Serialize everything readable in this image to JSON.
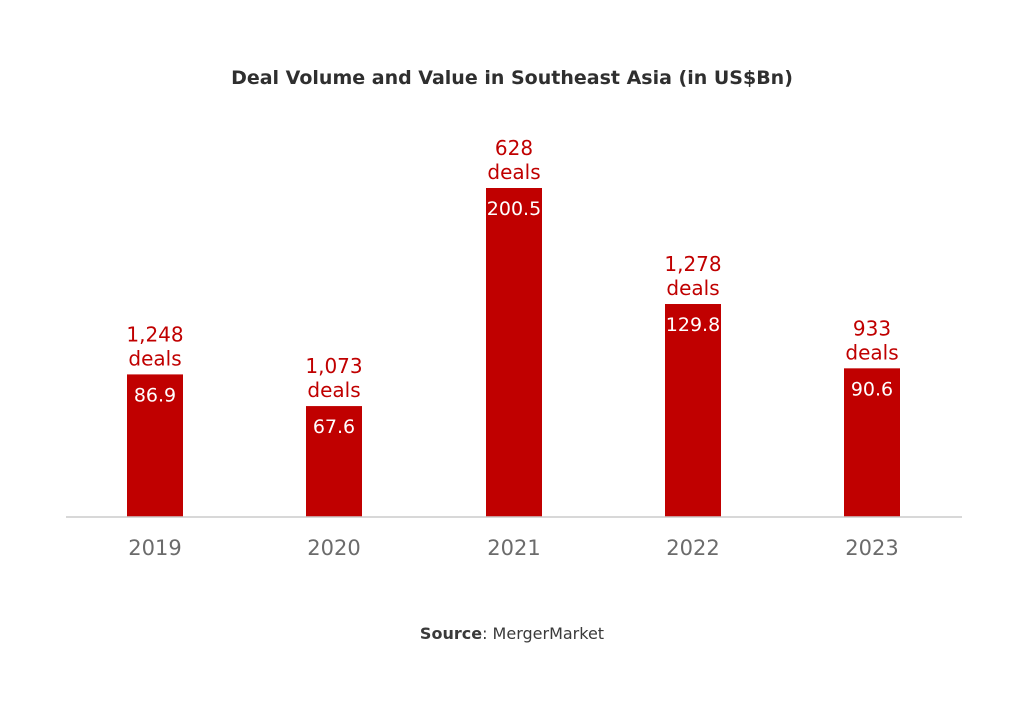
{
  "chart_data": {
    "type": "bar",
    "title": "Deal Volume and Value in Southeast Asia (in US$Bn)",
    "categories": [
      "2019",
      "2020",
      "2021",
      "2022",
      "2023"
    ],
    "series": [
      {
        "values": [
          86.9,
          67.6,
          200.5,
          129.8,
          90.6
        ],
        "value_labels": [
          "86.9",
          "67.6",
          "200.5",
          "129.8",
          "90.6"
        ],
        "deal_counts": [
          "1,248",
          "1,073",
          "628",
          "1,278",
          "933"
        ],
        "deal_unit": "deals"
      }
    ],
    "xlabel": "",
    "ylabel": "",
    "ylim": [
      0,
      210
    ],
    "grid": false,
    "legend": "none",
    "colors": {
      "bar": "#c00000",
      "deal_label": "#c00000",
      "value_label": "#ffffff",
      "axis": "#cccccc",
      "tick_label": "#6b6b6b",
      "title": "#2f2f2f"
    }
  },
  "source": {
    "label": "Source",
    "text": "MergerMarket"
  }
}
